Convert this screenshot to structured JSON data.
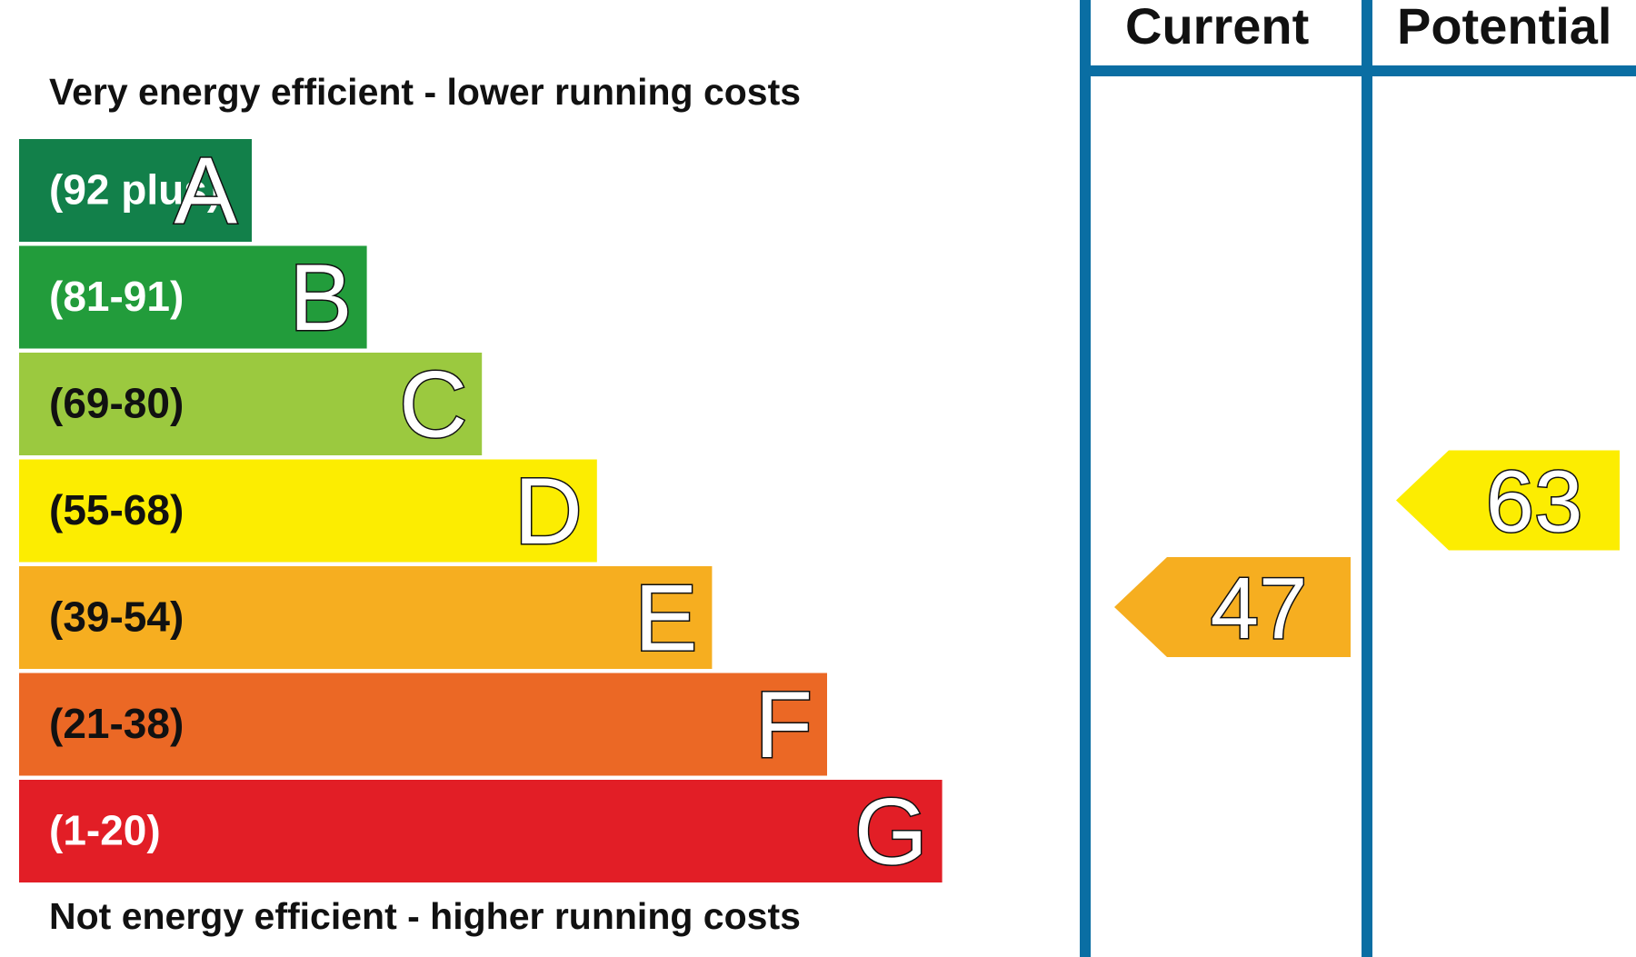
{
  "chart_data": {
    "type": "bar",
    "top_caption": "Very energy efficient - lower running costs",
    "bottom_caption": "Not energy efficient - higher running costs",
    "columns": [
      "Current",
      "Potential"
    ],
    "bands": [
      {
        "range": "(92 plus)",
        "letter": "A",
        "color": "#12804a",
        "length": 1
      },
      {
        "range": "(81-91)",
        "letter": "B",
        "color": "#229c3b",
        "length": 2
      },
      {
        "range": "(69-80)",
        "letter": "C",
        "color": "#9bc93f",
        "length": 3
      },
      {
        "range": "(55-68)",
        "letter": "D",
        "color": "#fced01",
        "length": 4
      },
      {
        "range": "(39-54)",
        "letter": "E",
        "color": "#f6ae20",
        "length": 5
      },
      {
        "range": "(21-38)",
        "letter": "F",
        "color": "#eb6825",
        "length": 6
      },
      {
        "range": "(1-20)",
        "letter": "G",
        "color": "#e21e26",
        "length": 7
      }
    ],
    "ratings": [
      {
        "column": "Current",
        "value": "47",
        "band": "E",
        "color": "#f6ae20"
      },
      {
        "column": "Potential",
        "value": "63",
        "band": "D",
        "color": "#fced01"
      }
    ],
    "frame_color": "#0a6ea3"
  }
}
